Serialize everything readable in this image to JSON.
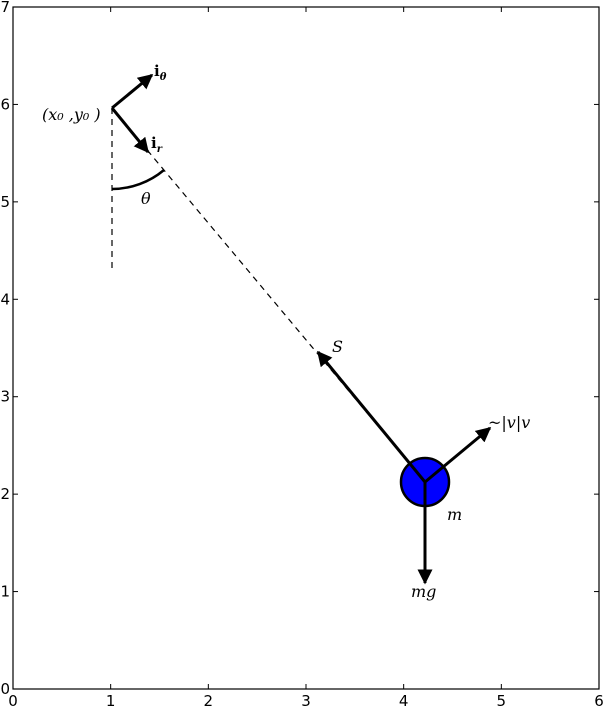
{
  "axes": {
    "xlim": [
      0,
      6
    ],
    "ylim": [
      0,
      7
    ],
    "xticks": [
      "0",
      "1",
      "2",
      "3",
      "4",
      "5",
      "6"
    ],
    "yticks": [
      "0",
      "1",
      "2",
      "3",
      "4",
      "5",
      "6",
      "7"
    ],
    "grid": false
  },
  "labels": {
    "pivot": "(x₀ ,y₀ )",
    "unit_theta_main": "i",
    "unit_theta_sub": "θ",
    "unit_r_main": "i",
    "unit_r_sub": "r",
    "angle": "θ",
    "tension": "S",
    "drag": "~|v|v",
    "mass": "m",
    "gravity": "mg"
  },
  "colors": {
    "bob": "#0000ff",
    "lines": "#000000"
  }
}
